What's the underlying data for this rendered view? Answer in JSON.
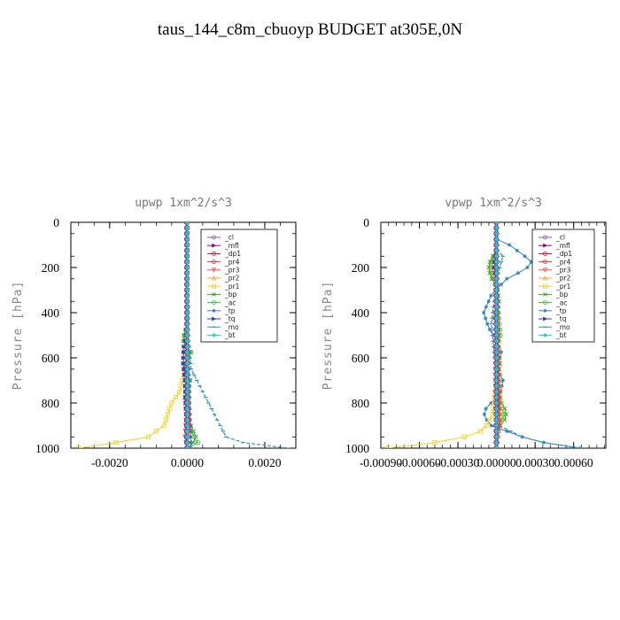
{
  "figure_title": "taus_144_c8m_cbuoyp  BUDGET at305E,0N",
  "legend": [
    {
      "name": "_cl",
      "color": "#8a5aa8",
      "marker": "o"
    },
    {
      "name": "_mfl",
      "color": "#8b0a7a",
      "marker": ">"
    },
    {
      "name": "_dp1",
      "color": "#b0103a",
      "marker": "o"
    },
    {
      "name": "_pr4",
      "color": "#e0303a",
      "marker": "o"
    },
    {
      "name": "_pr3",
      "color": "#f05050",
      "marker": "v"
    },
    {
      "name": "_pr2",
      "color": "#f0a030",
      "marker": "^"
    },
    {
      "name": "_pr1",
      "color": "#f0d020",
      "marker": "s"
    },
    {
      "name": "_bp",
      "color": "#40a020",
      "marker": "x"
    },
    {
      "name": "_ac",
      "color": "#30c030",
      "marker": "o"
    },
    {
      "name": "_tp",
      "color": "#3080c0",
      "marker": "*"
    },
    {
      "name": "_tq",
      "color": "#3040b0",
      "marker": ">"
    },
    {
      "name": "_mo",
      "color": "#3090c0",
      "marker": "-"
    },
    {
      "name": "_bt",
      "color": "#10d0e0",
      "marker": "d"
    }
  ],
  "chart_data": [
    {
      "type": "line",
      "title": "upwp   1xm^2/s^3",
      "xlabel": "",
      "ylabel": "Pressure [hPa]",
      "xlim": [
        -0.003,
        0.0028
      ],
      "ylim": [
        1000,
        0
      ],
      "y_inverted": true,
      "xticks": [
        -0.002,
        0.0,
        0.002
      ],
      "xtick_labels": [
        "-0.0020",
        "0.0000",
        "0.0020"
      ],
      "yticks": [
        0,
        200,
        400,
        600,
        800,
        1000
      ],
      "ytick_labels": [
        "0",
        "200",
        "400",
        "600",
        "800",
        "1000"
      ],
      "legend_position": "top-right",
      "series": [
        {
          "name": "_mo",
          "points": [
            [
              0,
              0
            ],
            [
              0,
              200
            ],
            [
              3e-05,
              500
            ],
            [
              0.0001,
              650
            ],
            [
              0.0004,
              750
            ],
            [
              0.0007,
              850
            ],
            [
              0.001,
              950
            ],
            [
              0.0017,
              990
            ],
            [
              0.0026,
              1000
            ]
          ]
        },
        {
          "name": "_pr1",
          "points": [
            [
              0,
              0
            ],
            [
              0,
              500
            ],
            [
              -5e-05,
              650
            ],
            [
              -0.0002,
              750
            ],
            [
              -0.0004,
              800
            ],
            [
              -0.0005,
              850
            ],
            [
              -0.0006,
              900
            ],
            [
              -0.001,
              950
            ],
            [
              -0.002,
              980
            ],
            [
              -0.0028,
              1000
            ]
          ]
        },
        {
          "name": "_bp",
          "points": [
            [
              0,
              0
            ],
            [
              0,
              450
            ],
            [
              -0.00012,
              520
            ],
            [
              0.00012,
              580
            ],
            [
              -0.00012,
              640
            ],
            [
              8e-05,
              700
            ],
            [
              -8e-05,
              780
            ],
            [
              5e-05,
              880
            ],
            [
              0.00025,
              960
            ],
            [
              0,
              1000
            ]
          ]
        },
        {
          "name": "_ac",
          "points": [
            [
              0,
              0
            ],
            [
              0,
              450
            ],
            [
              -0.0001,
              520
            ],
            [
              0.0001,
              580
            ],
            [
              -0.0001,
              640
            ],
            [
              6e-05,
              700
            ],
            [
              0,
              880
            ],
            [
              0.0002,
              960
            ],
            [
              0.0003,
              980
            ],
            [
              0,
              1000
            ]
          ]
        },
        {
          "name": "_tq",
          "points": [
            [
              0,
              0
            ],
            [
              0,
              500
            ],
            [
              -8e-05,
              550
            ],
            [
              -0.0001,
              620
            ],
            [
              -5e-05,
              700
            ],
            [
              0,
              1000
            ]
          ]
        },
        {
          "name": "_tp",
          "points": [
            [
              0,
              0
            ],
            [
              0,
              300
            ],
            [
              5e-05,
              700
            ],
            [
              0.0001,
              1000
            ]
          ]
        },
        {
          "name": "_pr4",
          "points": [
            [
              0,
              0
            ],
            [
              0,
              700
            ],
            [
              6e-05,
              900
            ],
            [
              0,
              1000
            ]
          ]
        },
        {
          "name": "_pr3",
          "points": [
            [
              0,
              0
            ],
            [
              0,
              800
            ],
            [
              -6e-05,
              950
            ],
            [
              0,
              1000
            ]
          ]
        },
        {
          "name": "_pr2",
          "points": [
            [
              0,
              0
            ],
            [
              0,
              1000
            ]
          ]
        },
        {
          "name": "_dp1",
          "points": [
            [
              -2e-05,
              0
            ],
            [
              -2e-05,
              1000
            ]
          ]
        },
        {
          "name": "_mfl",
          "points": [
            [
              1e-05,
              0
            ],
            [
              1e-05,
              1000
            ]
          ]
        },
        {
          "name": "_cl",
          "points": [
            [
              0,
              0
            ],
            [
              0,
              1000
            ]
          ]
        },
        {
          "name": "_bt",
          "points": [
            [
              0,
              0
            ],
            [
              0,
              1000
            ]
          ]
        }
      ]
    },
    {
      "type": "line",
      "title": "vpwp   1xm^2/s^3",
      "xlabel": "",
      "ylabel": "Pressure [hPa]",
      "xlim": [
        -0.0009,
        0.00085
      ],
      "ylim": [
        1000,
        0
      ],
      "y_inverted": true,
      "xticks": [
        -0.0009,
        -0.0006,
        -0.0003,
        0.0,
        0.0003,
        0.0006
      ],
      "xtick_labels": [
        "-0.00090",
        "-0.00060",
        "-0.00030",
        "0.00000",
        "0.00030",
        "0.00060"
      ],
      "yticks": [
        0,
        200,
        400,
        600,
        800,
        1000
      ],
      "ytick_labels": [
        "0",
        "200",
        "400",
        "600",
        "800",
        "1000"
      ],
      "legend_position": "top-right",
      "series": [
        {
          "name": "_tp",
          "points": [
            [
              0,
              0
            ],
            [
              0,
              80
            ],
            [
              0.0001,
              100
            ],
            [
              0.00022,
              150
            ],
            [
              0.00028,
              180
            ],
            [
              0.00022,
              210
            ],
            [
              8e-05,
              250
            ],
            [
              -4e-05,
              320
            ],
            [
              -0.0001,
              400
            ],
            [
              -6e-05,
              470
            ],
            [
              0,
              520
            ],
            [
              4e-05,
              580
            ],
            [
              0,
              640
            ],
            [
              5e-05,
              700
            ],
            [
              3e-05,
              760
            ],
            [
              -8e-05,
              820
            ],
            [
              -0.0001,
              860
            ],
            [
              -4e-05,
              900
            ],
            [
              0.0002,
              950
            ],
            [
              0.0004,
              980
            ],
            [
              0.00065,
              1000
            ]
          ]
        },
        {
          "name": "_mo",
          "points": [
            [
              0,
              0
            ],
            [
              0,
              120
            ],
            [
              5e-05,
              150
            ],
            [
              0,
              250
            ],
            [
              -4e-05,
              450
            ],
            [
              0,
              700
            ],
            [
              2e-05,
              800
            ],
            [
              2e-05,
              900
            ],
            [
              0.0002,
              950
            ],
            [
              0.0004,
              980
            ],
            [
              0.00065,
              1000
            ]
          ]
        },
        {
          "name": "_pr1",
          "points": [
            [
              0,
              0
            ],
            [
              0,
              700
            ],
            [
              -3e-05,
              850
            ],
            [
              -0.0001,
              920
            ],
            [
              -0.0003,
              960
            ],
            [
              -0.0006,
              985
            ],
            [
              -0.00085,
              1000
            ]
          ]
        },
        {
          "name": "_bp",
          "points": [
            [
              0,
              0
            ],
            [
              0,
              120
            ],
            [
              -5e-05,
              170
            ],
            [
              -6e-05,
              200
            ],
            [
              -5e-05,
              240
            ],
            [
              0,
              280
            ],
            [
              2e-05,
              350
            ],
            [
              -2e-05,
              420
            ],
            [
              2e-05,
              500
            ],
            [
              0,
              560
            ],
            [
              3e-05,
              620
            ],
            [
              0,
              700
            ],
            [
              4e-05,
              800
            ],
            [
              8e-05,
              840
            ],
            [
              6e-05,
              880
            ],
            [
              0,
              920
            ],
            [
              0,
              1000
            ]
          ]
        },
        {
          "name": "_ac",
          "points": [
            [
              0,
              0
            ],
            [
              0,
              130
            ],
            [
              -4e-05,
              170
            ],
            [
              -5e-05,
              210
            ],
            [
              -3e-05,
              250
            ],
            [
              0,
              290
            ],
            [
              3e-05,
              500
            ],
            [
              0,
              560
            ],
            [
              2e-05,
              800
            ],
            [
              6e-05,
              850
            ],
            [
              4e-05,
              880
            ],
            [
              0,
              920
            ],
            [
              0,
              1000
            ]
          ]
        },
        {
          "name": "_pr2",
          "points": [
            [
              0,
              0
            ],
            [
              0,
              150
            ],
            [
              -4e-05,
              190
            ],
            [
              -3e-05,
              220
            ],
            [
              0,
              260
            ],
            [
              3e-05,
              800
            ],
            [
              4e-05,
              870
            ],
            [
              0,
              920
            ],
            [
              0,
              1000
            ]
          ]
        },
        {
          "name": "_tq",
          "points": [
            [
              0,
              0
            ],
            [
              0,
              130
            ],
            [
              -2e-05,
              190
            ],
            [
              0,
              260
            ],
            [
              1e-05,
              800
            ],
            [
              0,
              1000
            ]
          ]
        },
        {
          "name": "_pr4",
          "points": [
            [
              0,
              0
            ],
            [
              1e-05,
              600
            ],
            [
              2e-05,
              900
            ],
            [
              0,
              1000
            ]
          ]
        },
        {
          "name": "_pr3",
          "points": [
            [
              0,
              0
            ],
            [
              -1e-05,
              700
            ],
            [
              0,
              1000
            ]
          ]
        },
        {
          "name": "_dp1",
          "points": [
            [
              -5e-06,
              0
            ],
            [
              -5e-06,
              1000
            ]
          ]
        },
        {
          "name": "_mfl",
          "points": [
            [
              5e-06,
              0
            ],
            [
              5e-06,
              1000
            ]
          ]
        },
        {
          "name": "_cl",
          "points": [
            [
              0,
              0
            ],
            [
              0,
              1000
            ]
          ]
        },
        {
          "name": "_bt",
          "points": [
            [
              0,
              0
            ],
            [
              0,
              1000
            ]
          ]
        }
      ]
    }
  ]
}
